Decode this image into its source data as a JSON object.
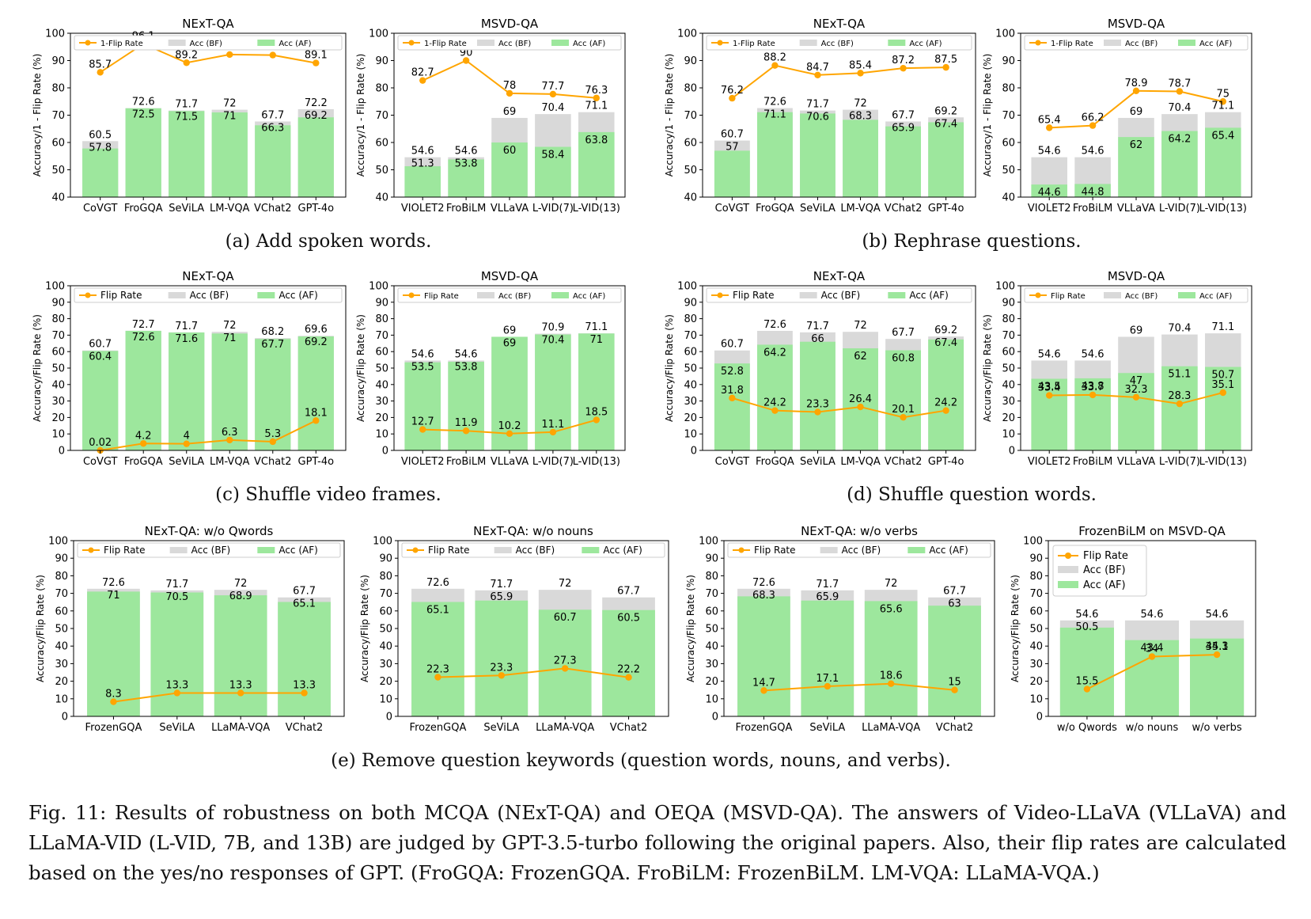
{
  "colors": {
    "bf": "#d9d9d9",
    "af": "#9de79d",
    "flip": "#ffa500",
    "axis": "#000000"
  },
  "legend_labels": {
    "bf": "Acc (BF)",
    "af": "Acc (AF)"
  },
  "sub_captions": {
    "a": "(a) Add spoken words.",
    "b": "(b) Rephrase questions.",
    "c": "(c) Shuffle video frames.",
    "d": "(d) Shuffle question words.",
    "e": "(e) Remove question keywords (question words, nouns, and verbs)."
  },
  "caption": "Fig. 11: Results of robustness on both MCQA (NExT-QA) and OEQA (MSVD-QA). The answers of Video-LLaVA (VLLaVA) and LLaMA-VID (L-VID, 7B, and 13B) are judged by GPT-3.5-turbo following the original papers. Also, their flip rates are calculated based on the yes/no responses of GPT. (FroGQA: FrozenGQA. FroBiLM: FrozenBiLM. LM-VQA: LLaMA-VQA.)",
  "chart_data": [
    {
      "type": "bar",
      "title": "NExT-QA",
      "ylabel": "Accuracy/1 - Flip Rate (%)",
      "ylim": [
        40,
        100
      ],
      "yticks": [
        40,
        50,
        60,
        70,
        80,
        90,
        100
      ],
      "flip_label": "1-Flip Rate",
      "legend": "top-right",
      "categories": [
        "CoVGT",
        "FroGQA",
        "SeViLA",
        "LM-VQA",
        "VChat2",
        "GPT-4o"
      ],
      "series": [
        {
          "name": "Acc (BF)",
          "values": [
            60.5,
            72.6,
            71.7,
            72.0,
            67.7,
            72.2
          ]
        },
        {
          "name": "Acc (AF)",
          "values": [
            57.8,
            72.5,
            71.5,
            71.0,
            66.3,
            69.2
          ]
        },
        {
          "name": "1-Flip Rate",
          "values": [
            85.7,
            96.1,
            89.2,
            92.2,
            92.0,
            89.1
          ]
        }
      ]
    },
    {
      "type": "bar",
      "title": "MSVD-QA",
      "ylabel": "Accuracy/1 - Flip Rate (%)",
      "ylim": [
        40,
        100
      ],
      "yticks": [
        40,
        50,
        60,
        70,
        80,
        90,
        100
      ],
      "flip_label": "1-Flip Rate",
      "legend": "top-right",
      "categories": [
        "VIOLET2",
        "FroBiLM",
        "VLLaVA",
        "L-VID(7)",
        "L-VID(13)"
      ],
      "series": [
        {
          "name": "Acc (BF)",
          "values": [
            54.6,
            54.6,
            69.0,
            70.4,
            71.1
          ]
        },
        {
          "name": "Acc (AF)",
          "values": [
            51.3,
            53.8,
            60.0,
            58.4,
            63.8
          ]
        },
        {
          "name": "1-Flip Rate",
          "values": [
            82.7,
            90.0,
            78.0,
            77.7,
            76.3
          ]
        }
      ]
    },
    {
      "type": "bar",
      "title": "NExT-QA",
      "ylabel": "Accuracy/1 - Flip Rate (%)",
      "ylim": [
        40,
        100
      ],
      "yticks": [
        40,
        50,
        60,
        70,
        80,
        90,
        100
      ],
      "flip_label": "1-Flip Rate",
      "legend": "top-right",
      "categories": [
        "CoVGT",
        "FroGQA",
        "SeViLA",
        "LM-VQA",
        "VChat2",
        "GPT-4o"
      ],
      "series": [
        {
          "name": "Acc (BF)",
          "values": [
            60.7,
            72.6,
            71.7,
            72.0,
            67.7,
            69.2
          ]
        },
        {
          "name": "Acc (AF)",
          "values": [
            57.0,
            71.1,
            70.6,
            68.3,
            65.9,
            67.4
          ]
        },
        {
          "name": "1-Flip Rate",
          "values": [
            76.2,
            88.2,
            84.7,
            85.4,
            87.2,
            87.5
          ]
        }
      ]
    },
    {
      "type": "bar",
      "title": "MSVD-QA",
      "ylabel": "Accuracy/1 - Flip Rate (%)",
      "ylim": [
        40,
        100
      ],
      "yticks": [
        40,
        50,
        60,
        70,
        80,
        90,
        100
      ],
      "flip_label": "1-Flip Rate",
      "legend": "top-right",
      "categories": [
        "VIOLET2",
        "FroBiLM",
        "VLLaVA",
        "L-VID(7)",
        "L-VID(13)"
      ],
      "series": [
        {
          "name": "Acc (BF)",
          "values": [
            54.6,
            54.6,
            69.0,
            70.4,
            71.1
          ]
        },
        {
          "name": "Acc (AF)",
          "values": [
            44.6,
            44.8,
            62.0,
            64.2,
            65.4
          ]
        },
        {
          "name": "1-Flip Rate",
          "values": [
            65.4,
            66.2,
            78.9,
            78.7,
            75.0
          ]
        }
      ]
    },
    {
      "type": "bar",
      "title": "NExT-QA",
      "ylabel": "Accuracy/Flip Rate (%)",
      "ylim": [
        0,
        100
      ],
      "yticks": [
        0,
        10,
        20,
        30,
        40,
        50,
        60,
        70,
        80,
        90,
        100
      ],
      "flip_label": "Flip Rate",
      "legend": "top-right",
      "categories": [
        "CoVGT",
        "FroGQA",
        "SeViLA",
        "LM-VQA",
        "VChat2",
        "GPT-4o"
      ],
      "series": [
        {
          "name": "Acc (BF)",
          "values": [
            60.7,
            72.7,
            71.7,
            72.0,
            68.2,
            69.6
          ]
        },
        {
          "name": "Acc (AF)",
          "values": [
            60.4,
            72.6,
            71.6,
            71.0,
            67.7,
            69.2
          ]
        },
        {
          "name": "Flip Rate",
          "values": [
            0.02,
            4.2,
            4.0,
            6.3,
            5.3,
            18.1
          ]
        }
      ]
    },
    {
      "type": "bar",
      "title": "MSVD-QA",
      "ylabel": "Accuracy/Flip Rate (%)",
      "ylim": [
        0,
        100
      ],
      "yticks": [
        0,
        10,
        20,
        30,
        40,
        50,
        60,
        70,
        80,
        90,
        100
      ],
      "flip_label": "Flip Rate",
      "legend": "top-right",
      "categories": [
        "VIOLET2",
        "FroBiLM",
        "VLLaVA",
        "L-VID(7)",
        "L-VID(13)"
      ],
      "series": [
        {
          "name": "Acc (BF)",
          "values": [
            54.6,
            54.6,
            69.0,
            70.9,
            71.1
          ]
        },
        {
          "name": "Acc (AF)",
          "values": [
            53.5,
            53.8,
            69.0,
            70.4,
            71.0
          ]
        },
        {
          "name": "Flip Rate",
          "values": [
            12.7,
            11.9,
            10.2,
            11.1,
            18.5
          ]
        }
      ]
    },
    {
      "type": "bar",
      "title": "NExT-QA",
      "ylabel": "Accuracy/Flip Rate (%)",
      "ylim": [
        0,
        100
      ],
      "yticks": [
        0,
        10,
        20,
        30,
        40,
        50,
        60,
        70,
        80,
        90,
        100
      ],
      "flip_label": "Flip Rate",
      "legend": "top-right",
      "categories": [
        "CoVGT",
        "FroGQA",
        "SeViLA",
        "LM-VQA",
        "VChat2",
        "GPT-4o"
      ],
      "series": [
        {
          "name": "Acc (BF)",
          "values": [
            60.7,
            72.6,
            71.7,
            72.0,
            67.7,
            69.2
          ]
        },
        {
          "name": "Acc (AF)",
          "values": [
            52.8,
            64.2,
            66.0,
            62.0,
            60.8,
            67.4
          ]
        },
        {
          "name": "Flip Rate",
          "values": [
            31.8,
            24.2,
            23.3,
            26.4,
            20.1,
            24.2
          ]
        }
      ]
    },
    {
      "type": "bar",
      "title": "MSVD-QA",
      "ylabel": "Accuracy/Flip Rate (%)",
      "ylim": [
        0,
        100
      ],
      "yticks": [
        0,
        10,
        20,
        30,
        40,
        50,
        60,
        70,
        80,
        90,
        100
      ],
      "flip_label": "Flip Rate",
      "legend": "top-right",
      "categories": [
        "VIOLET2",
        "FroBiLM",
        "VLLaVA",
        "L-VID(7)",
        "L-VID(13)"
      ],
      "series": [
        {
          "name": "Acc (BF)",
          "values": [
            54.6,
            54.6,
            69.0,
            70.4,
            71.1
          ]
        },
        {
          "name": "Acc (AF)",
          "values": [
            43.5,
            43.8,
            47.0,
            51.1,
            50.7
          ]
        },
        {
          "name": "Flip Rate",
          "values": [
            33.4,
            33.7,
            32.3,
            28.3,
            35.1
          ]
        }
      ]
    },
    {
      "type": "bar",
      "title": "NExT-QA: w/o Qwords",
      "ylabel": "Accuracy/Flip Rate (%)",
      "ylim": [
        0,
        100
      ],
      "yticks": [
        0,
        10,
        20,
        30,
        40,
        50,
        60,
        70,
        80,
        90,
        100
      ],
      "flip_label": "Flip Rate",
      "legend": "top-right",
      "categories": [
        "FrozenGQA",
        "SeViLA",
        "LLaMA-VQA",
        "VChat2"
      ],
      "series": [
        {
          "name": "Acc (BF)",
          "values": [
            72.6,
            71.7,
            72.0,
            67.7
          ]
        },
        {
          "name": "Acc (AF)",
          "values": [
            71.0,
            70.5,
            68.9,
            65.1
          ]
        },
        {
          "name": "Flip Rate",
          "values": [
            8.3,
            13.3,
            13.3,
            13.3
          ]
        }
      ]
    },
    {
      "type": "bar",
      "title": "NExT-QA: w/o nouns",
      "ylabel": "Accuracy/Flip Rate (%)",
      "ylim": [
        0,
        100
      ],
      "yticks": [
        0,
        10,
        20,
        30,
        40,
        50,
        60,
        70,
        80,
        90,
        100
      ],
      "flip_label": "Flip Rate",
      "legend": "top-right",
      "categories": [
        "FrozenGQA",
        "SeViLA",
        "LLaMA-VQA",
        "VChat2"
      ],
      "series": [
        {
          "name": "Acc (BF)",
          "values": [
            72.6,
            71.7,
            72.0,
            67.7
          ]
        },
        {
          "name": "Acc (AF)",
          "values": [
            65.1,
            65.9,
            60.7,
            60.5
          ]
        },
        {
          "name": "Flip Rate",
          "values": [
            22.3,
            23.3,
            27.3,
            22.2
          ]
        }
      ]
    },
    {
      "type": "bar",
      "title": "NExT-QA: w/o verbs",
      "ylabel": "Accuracy/Flip Rate (%)",
      "ylim": [
        0,
        100
      ],
      "yticks": [
        0,
        10,
        20,
        30,
        40,
        50,
        60,
        70,
        80,
        90,
        100
      ],
      "flip_label": "Flip Rate",
      "legend": "top-right",
      "categories": [
        "FrozenGQA",
        "SeViLA",
        "LLaMA-VQA",
        "VChat2"
      ],
      "series": [
        {
          "name": "Acc (BF)",
          "values": [
            72.6,
            71.7,
            72.0,
            67.7
          ]
        },
        {
          "name": "Acc (AF)",
          "values": [
            68.3,
            65.9,
            65.6,
            63.0
          ]
        },
        {
          "name": "Flip Rate",
          "values": [
            14.7,
            17.1,
            18.6,
            15.0
          ]
        }
      ]
    },
    {
      "type": "bar",
      "title": "FrozenBiLM on MSVD-QA",
      "ylabel": "Accuracy/Flip Rate (%)",
      "ylim": [
        0,
        100
      ],
      "yticks": [
        0,
        10,
        20,
        30,
        40,
        50,
        60,
        70,
        80,
        90,
        100
      ],
      "flip_label": "Flip Rate",
      "legend": "top-left",
      "categories": [
        "w/o Qwords",
        "w/o nouns",
        "w/o verbs"
      ],
      "series": [
        {
          "name": "Acc (BF)",
          "values": [
            54.6,
            54.6,
            54.6
          ]
        },
        {
          "name": "Acc (AF)",
          "values": [
            50.5,
            43.4,
            44.3
          ]
        },
        {
          "name": "Flip Rate",
          "values": [
            15.5,
            34.0,
            35.1
          ]
        }
      ]
    }
  ]
}
